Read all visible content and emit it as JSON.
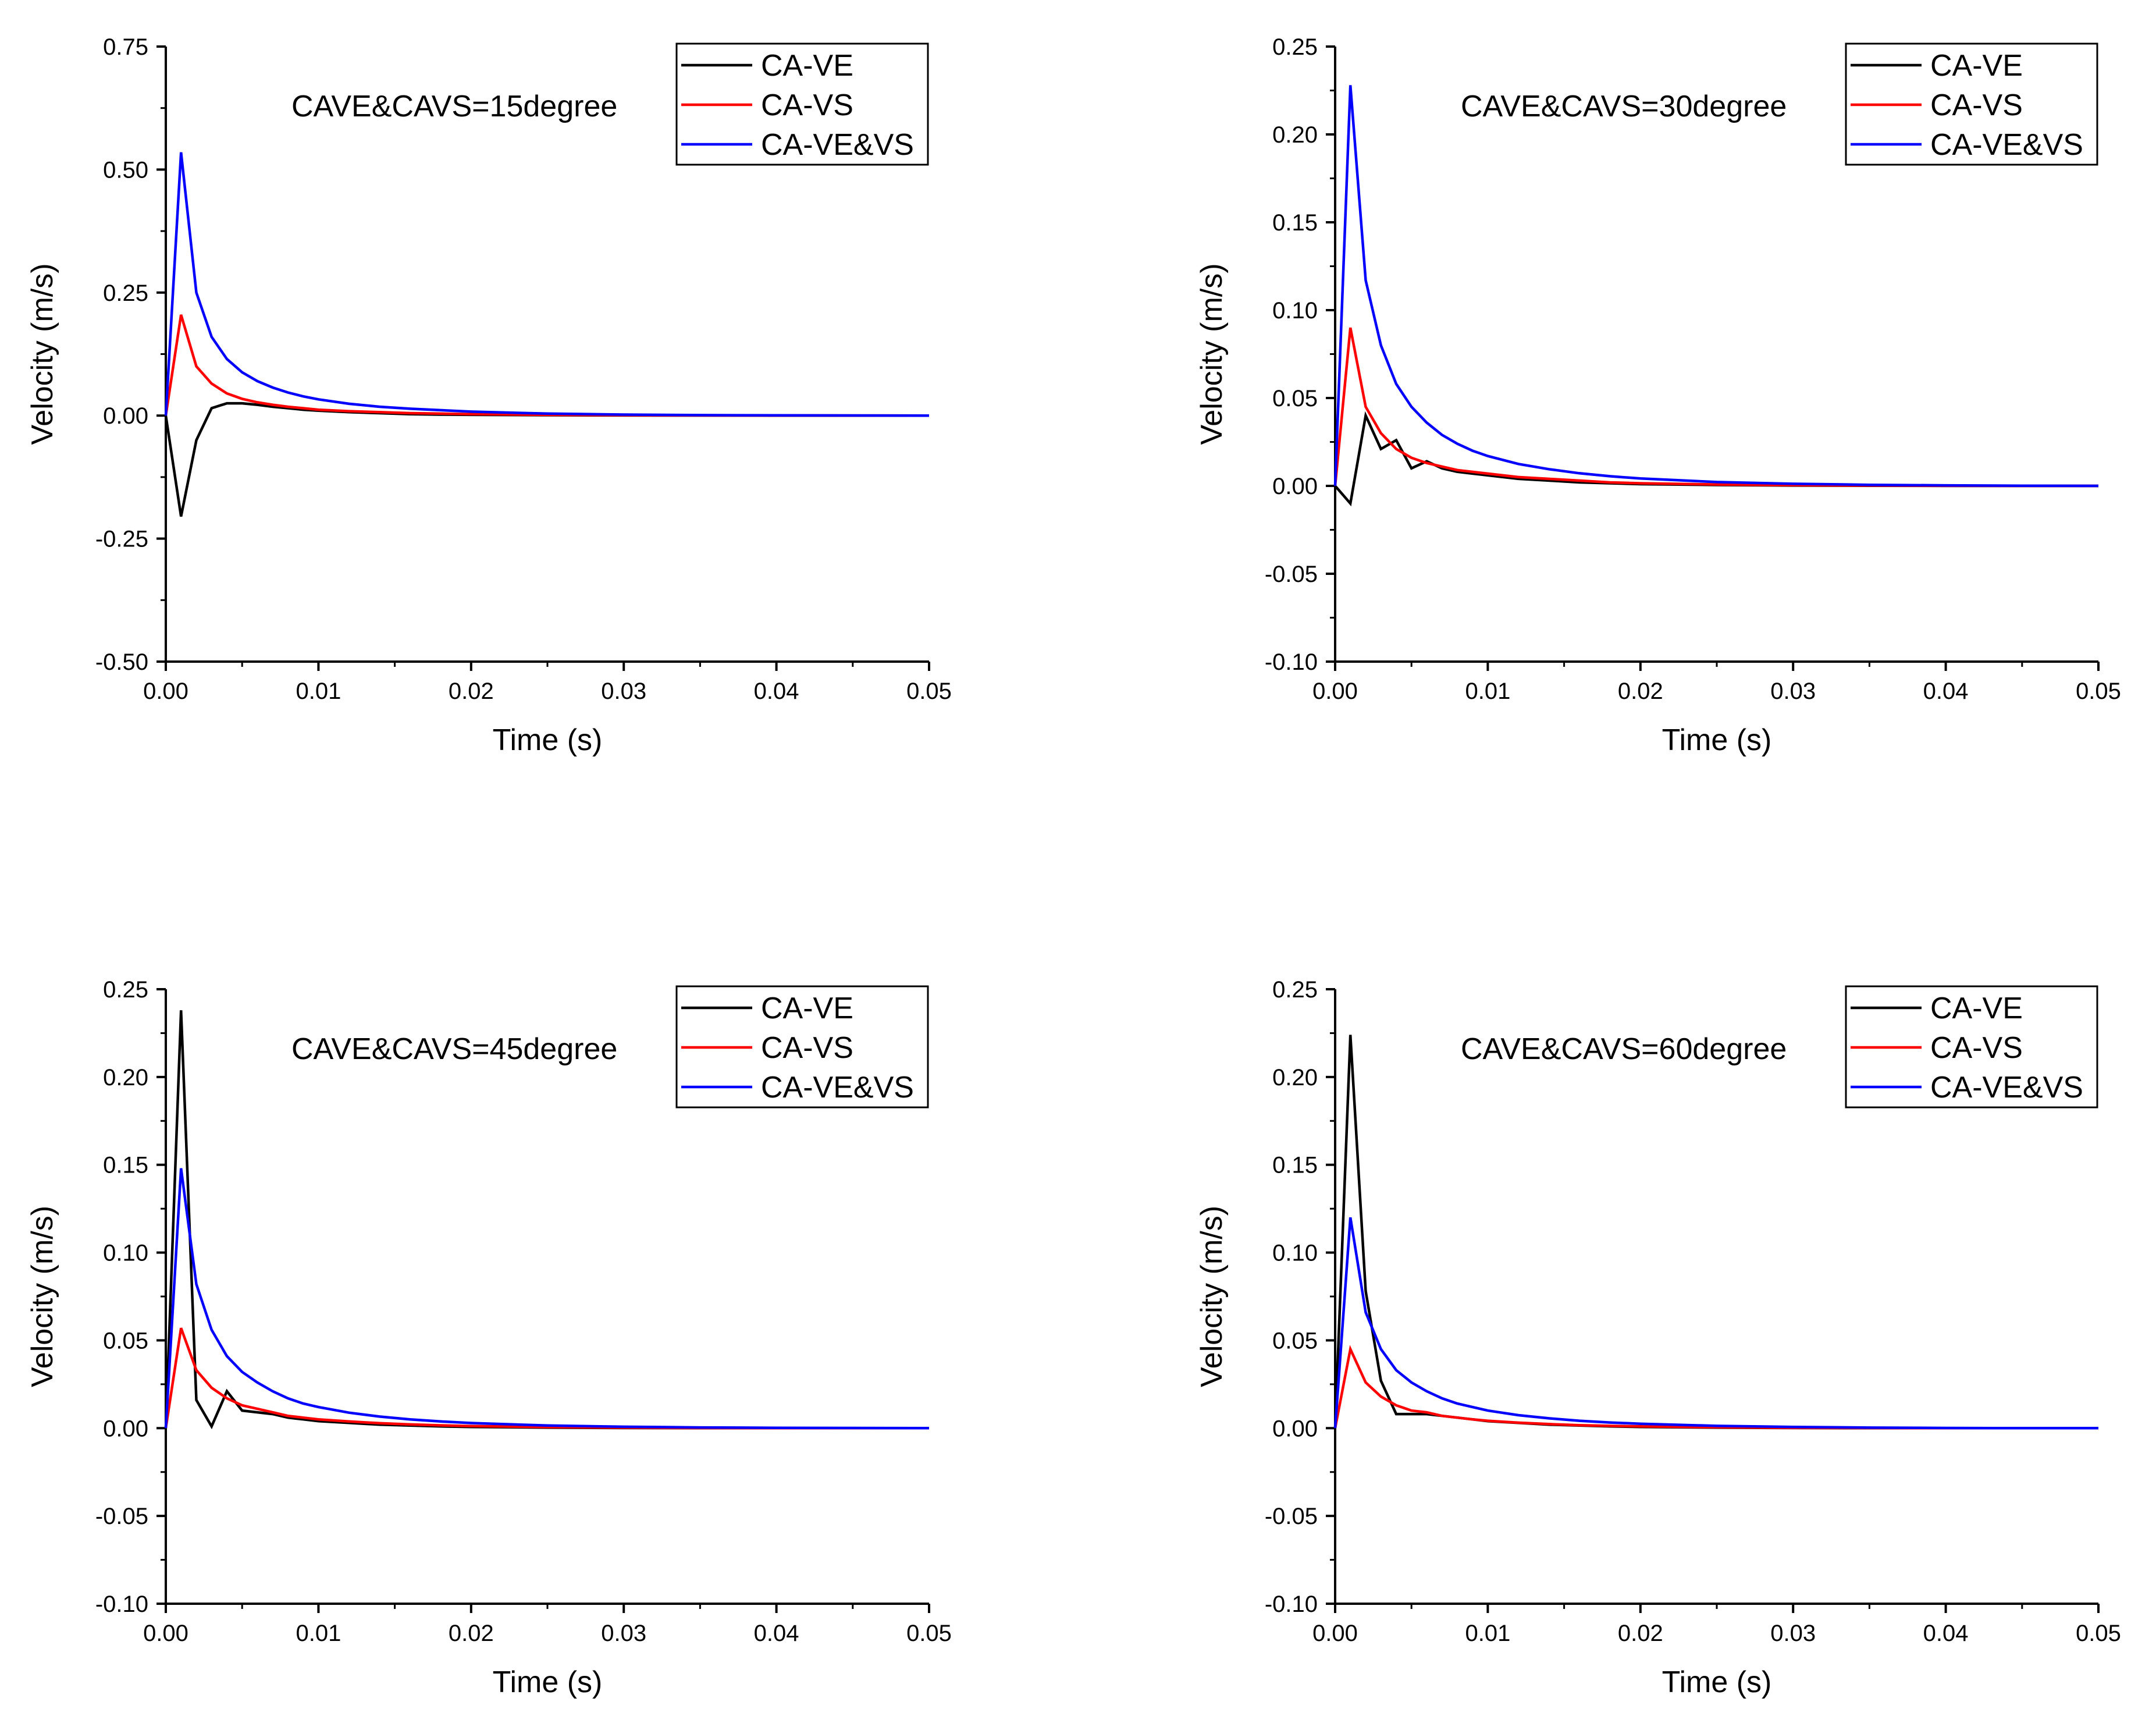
{
  "chart_data": [
    {
      "type": "line",
      "annotation": "CAVE&CAVS=15degree",
      "xlabel": "Time (s)",
      "ylabel": "Velocity (m/s)",
      "xlim": [
        0,
        0.05
      ],
      "ylim": [
        -0.5,
        0.75
      ],
      "xticks": [
        0,
        0.01,
        0.02,
        0.03,
        0.04,
        0.05
      ],
      "xtick_labels": [
        "0.00",
        "0.01",
        "0.02",
        "0.03",
        "0.04",
        "0.05"
      ],
      "yticks": [
        -0.5,
        -0.25,
        0,
        0.25,
        0.5,
        0.75
      ],
      "ytick_labels": [
        "-0.50",
        "-0.25",
        "0.00",
        "0.25",
        "0.50",
        "0.75"
      ],
      "legend_position": "top-right",
      "x": [
        0,
        0.001,
        0.002,
        0.003,
        0.004,
        0.005,
        0.006,
        0.007,
        0.008,
        0.009,
        0.01,
        0.012,
        0.014,
        0.016,
        0.018,
        0.02,
        0.025,
        0.03,
        0.035,
        0.04,
        0.045,
        0.05
      ],
      "series": [
        {
          "name": "CA-VE",
          "color": "#000000",
          "values": [
            0,
            -0.205,
            -0.05,
            0.015,
            0.025,
            0.025,
            0.022,
            0.018,
            0.015,
            0.012,
            0.01,
            0.007,
            0.005,
            0.003,
            0.002,
            0.0015,
            0.0008,
            0.0004,
            0.0002,
            0.0001,
            0,
            0
          ]
        },
        {
          "name": "CA-VS",
          "color": "#ff0000",
          "values": [
            0,
            0.205,
            0.1,
            0.065,
            0.045,
            0.034,
            0.027,
            0.022,
            0.018,
            0.015,
            0.012,
            0.009,
            0.007,
            0.005,
            0.004,
            0.003,
            0.0015,
            0.0008,
            0.0004,
            0.0002,
            0.0001,
            0
          ]
        },
        {
          "name": "CA-VE&VS",
          "color": "#0000ff",
          "values": [
            0,
            0.535,
            0.25,
            0.16,
            0.115,
            0.088,
            0.07,
            0.057,
            0.047,
            0.039,
            0.033,
            0.024,
            0.018,
            0.014,
            0.011,
            0.008,
            0.004,
            0.002,
            0.001,
            0.0005,
            0.0002,
            0
          ]
        }
      ]
    },
    {
      "type": "line",
      "annotation": "CAVE&CAVS=30degree",
      "xlabel": "Time (s)",
      "ylabel": "Velocity (m/s)",
      "xlim": [
        0,
        0.05
      ],
      "ylim": [
        -0.1,
        0.25
      ],
      "xticks": [
        0,
        0.01,
        0.02,
        0.03,
        0.04,
        0.05
      ],
      "xtick_labels": [
        "0.00",
        "0.01",
        "0.02",
        "0.03",
        "0.04",
        "0.05"
      ],
      "yticks": [
        -0.1,
        -0.05,
        0,
        0.05,
        0.1,
        0.15,
        0.2,
        0.25
      ],
      "ytick_labels": [
        "-0.10",
        "-0.05",
        "0.00",
        "0.05",
        "0.10",
        "0.15",
        "0.20",
        "0.25"
      ],
      "legend_position": "top-right",
      "x": [
        0,
        0.001,
        0.002,
        0.003,
        0.004,
        0.005,
        0.006,
        0.007,
        0.008,
        0.009,
        0.01,
        0.012,
        0.014,
        0.016,
        0.018,
        0.02,
        0.025,
        0.03,
        0.035,
        0.04,
        0.045,
        0.05
      ],
      "series": [
        {
          "name": "CA-VE",
          "color": "#000000",
          "values": [
            0,
            -0.01,
            0.04,
            0.021,
            0.026,
            0.01,
            0.014,
            0.01,
            0.008,
            0.007,
            0.006,
            0.004,
            0.003,
            0.002,
            0.0015,
            0.001,
            0.0005,
            0.0002,
            0.0001,
            0,
            0,
            0
          ]
        },
        {
          "name": "CA-VS",
          "color": "#ff0000",
          "values": [
            0,
            0.09,
            0.045,
            0.03,
            0.021,
            0.016,
            0.013,
            0.011,
            0.009,
            0.008,
            0.007,
            0.005,
            0.004,
            0.003,
            0.002,
            0.0015,
            0.0008,
            0.0004,
            0.0002,
            0.0001,
            0,
            0
          ]
        },
        {
          "name": "CA-VE&VS",
          "color": "#0000ff",
          "values": [
            0,
            0.228,
            0.117,
            0.08,
            0.058,
            0.045,
            0.036,
            0.029,
            0.024,
            0.02,
            0.017,
            0.0125,
            0.0095,
            0.0072,
            0.0055,
            0.0042,
            0.0022,
            0.0012,
            0.0006,
            0.0003,
            0.0001,
            0
          ]
        }
      ]
    },
    {
      "type": "line",
      "annotation": "CAVE&CAVS=45degree",
      "xlabel": "Time (s)",
      "ylabel": "Velocity (m/s)",
      "xlim": [
        0,
        0.05
      ],
      "ylim": [
        -0.1,
        0.25
      ],
      "xticks": [
        0,
        0.01,
        0.02,
        0.03,
        0.04,
        0.05
      ],
      "xtick_labels": [
        "0.00",
        "0.01",
        "0.02",
        "0.03",
        "0.04",
        "0.05"
      ],
      "yticks": [
        -0.1,
        -0.05,
        0,
        0.05,
        0.1,
        0.15,
        0.2,
        0.25
      ],
      "ytick_labels": [
        "-0.10",
        "-0.05",
        "0.00",
        "0.05",
        "0.10",
        "0.15",
        "0.20",
        "0.25"
      ],
      "legend_position": "top-right",
      "x": [
        0,
        0.001,
        0.002,
        0.003,
        0.004,
        0.005,
        0.006,
        0.007,
        0.008,
        0.009,
        0.01,
        0.012,
        0.014,
        0.016,
        0.018,
        0.02,
        0.025,
        0.03,
        0.035,
        0.04,
        0.045,
        0.05
      ],
      "series": [
        {
          "name": "CA-VE",
          "color": "#000000",
          "values": [
            0,
            0.238,
            0.016,
            0.001,
            0.021,
            0.01,
            0.009,
            0.008,
            0.006,
            0.005,
            0.004,
            0.003,
            0.002,
            0.0015,
            0.001,
            0.0007,
            0.0003,
            0.0001,
            0,
            0,
            0,
            0
          ]
        },
        {
          "name": "CA-VS",
          "color": "#ff0000",
          "values": [
            0,
            0.057,
            0.033,
            0.023,
            0.017,
            0.013,
            0.011,
            0.009,
            0.007,
            0.006,
            0.005,
            0.0038,
            0.0028,
            0.0021,
            0.0016,
            0.0012,
            0.0006,
            0.0003,
            0.0001,
            0,
            0,
            0
          ]
        },
        {
          "name": "CA-VE&VS",
          "color": "#0000ff",
          "values": [
            0,
            0.148,
            0.082,
            0.056,
            0.041,
            0.032,
            0.026,
            0.021,
            0.017,
            0.014,
            0.012,
            0.0088,
            0.0066,
            0.005,
            0.0038,
            0.0029,
            0.0015,
            0.0008,
            0.0004,
            0.0002,
            0.0001,
            0
          ]
        }
      ]
    },
    {
      "type": "line",
      "annotation": "CAVE&CAVS=60degree",
      "xlabel": "Time (s)",
      "ylabel": "Velocity (m/s)",
      "xlim": [
        0,
        0.05
      ],
      "ylim": [
        -0.1,
        0.25
      ],
      "xticks": [
        0,
        0.01,
        0.02,
        0.03,
        0.04,
        0.05
      ],
      "xtick_labels": [
        "0.00",
        "0.01",
        "0.02",
        "0.03",
        "0.04",
        "0.05"
      ],
      "yticks": [
        -0.1,
        -0.05,
        0,
        0.05,
        0.1,
        0.15,
        0.2,
        0.25
      ],
      "ytick_labels": [
        "-0.10",
        "-0.05",
        "0.00",
        "0.05",
        "0.10",
        "0.15",
        "0.20",
        "0.25"
      ],
      "legend_position": "top-right",
      "x": [
        0,
        0.001,
        0.002,
        0.003,
        0.004,
        0.005,
        0.006,
        0.007,
        0.008,
        0.009,
        0.01,
        0.012,
        0.014,
        0.016,
        0.018,
        0.02,
        0.025,
        0.03,
        0.035,
        0.04,
        0.045,
        0.05
      ],
      "series": [
        {
          "name": "CA-VE",
          "color": "#000000",
          "values": [
            0,
            0.224,
            0.078,
            0.027,
            0.008,
            0.008,
            0.008,
            0.007,
            0.006,
            0.005,
            0.004,
            0.003,
            0.002,
            0.0015,
            0.001,
            0.0007,
            0.0003,
            0.0001,
            0,
            0,
            0,
            0
          ]
        },
        {
          "name": "CA-VS",
          "color": "#ff0000",
          "values": [
            0,
            0.045,
            0.026,
            0.018,
            0.013,
            0.01,
            0.009,
            0.007,
            0.006,
            0.005,
            0.0042,
            0.0031,
            0.0023,
            0.0017,
            0.0013,
            0.001,
            0.0005,
            0.0002,
            0.0001,
            0,
            0,
            0
          ]
        },
        {
          "name": "CA-VE&VS",
          "color": "#0000ff",
          "values": [
            0,
            0.12,
            0.066,
            0.045,
            0.033,
            0.026,
            0.021,
            0.017,
            0.014,
            0.012,
            0.01,
            0.0074,
            0.0056,
            0.0042,
            0.0032,
            0.0025,
            0.0013,
            0.0007,
            0.0003,
            0.0001,
            0,
            0
          ]
        }
      ]
    }
  ]
}
